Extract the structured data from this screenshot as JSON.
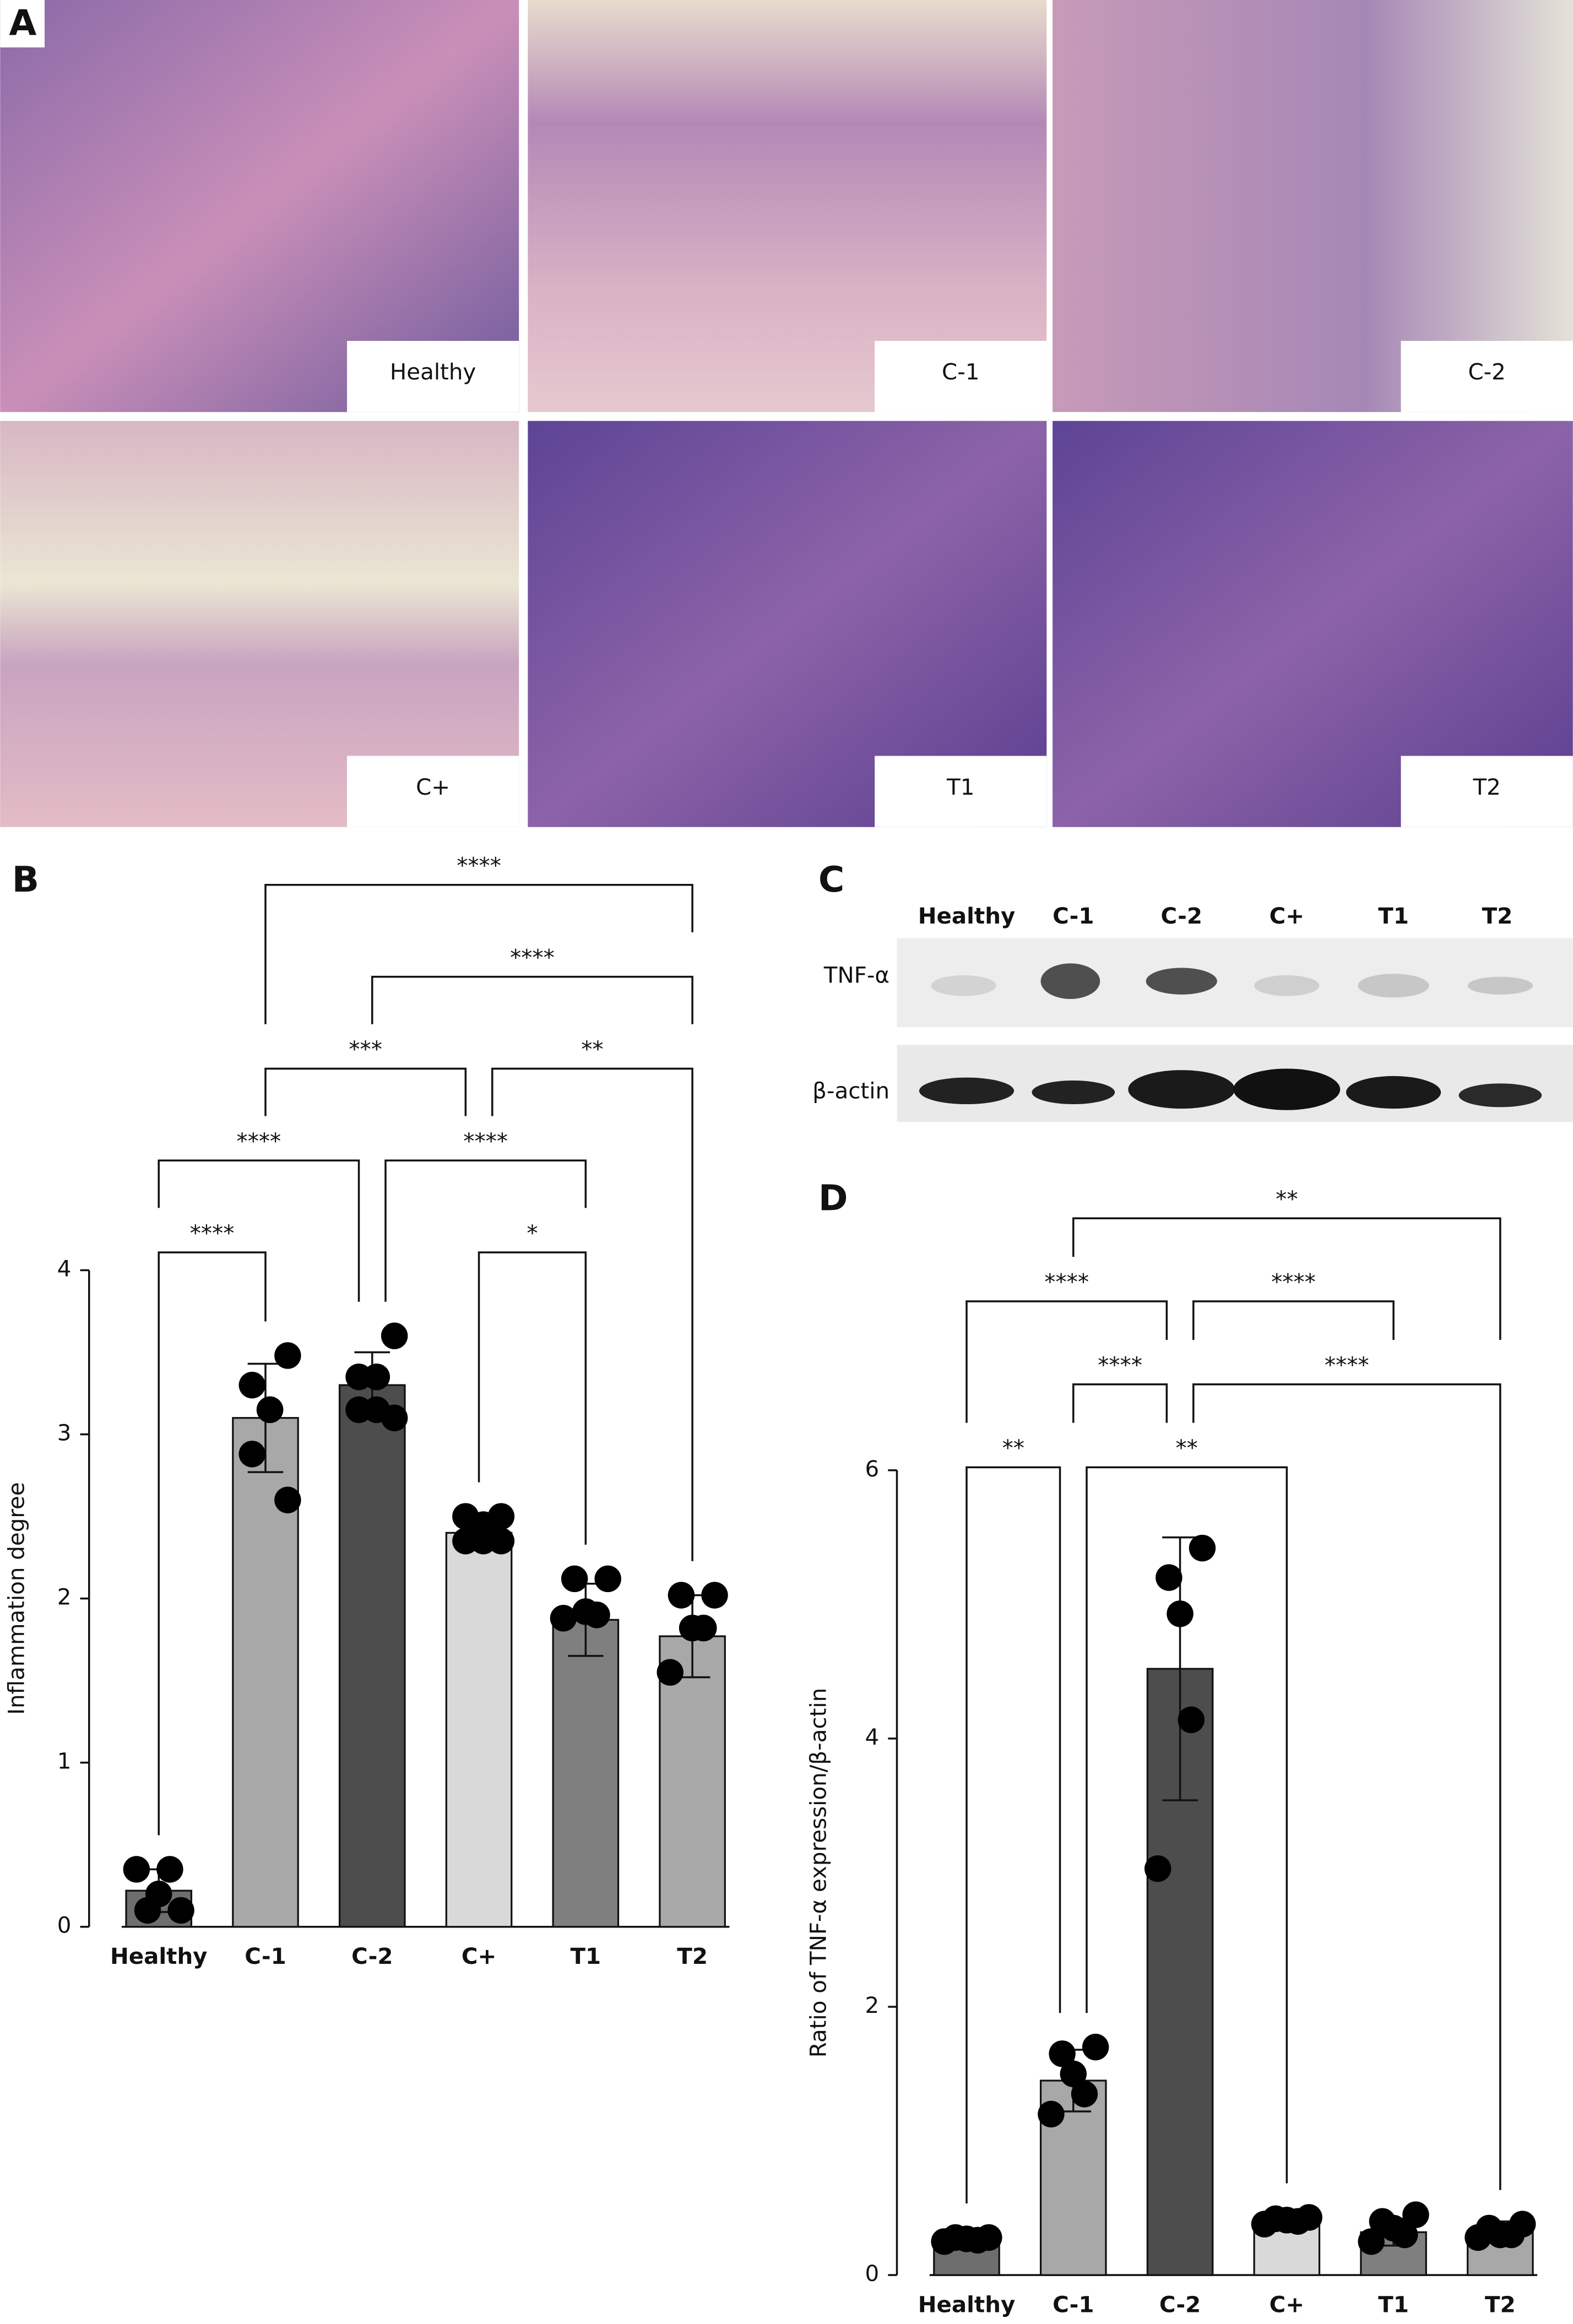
{
  "panel_a": {
    "label": "A",
    "images": [
      "Healthy",
      "C-1",
      "C-2",
      "C+",
      "T1",
      "T2"
    ]
  },
  "panel_c": {
    "label": "C",
    "lanes": [
      "Healthy",
      "C-1",
      "C-2",
      "C+",
      "T1",
      "T2"
    ],
    "rows": [
      "TNF-α",
      "β-actin"
    ]
  },
  "chart_data": [
    {
      "type": "bar",
      "label": "B",
      "y_label": "Inflammation degree",
      "categories": [
        "Healthy",
        "C-1",
        "C-2",
        "C+",
        "T1",
        "T2"
      ],
      "values": [
        0.22,
        3.1,
        3.3,
        2.4,
        1.87,
        1.77
      ],
      "errors": [
        0.13,
        0.33,
        0.2,
        0.1,
        0.22,
        0.25
      ],
      "colors": [
        "#6e6e6e",
        "#a8a8a8",
        "#4d4d4d",
        "#d9d9d9",
        "#7f7f7f",
        "#a8a8a8"
      ],
      "points": [
        [
          0.1,
          0.1,
          0.2,
          0.35,
          0.35
        ],
        [
          3.48,
          3.3,
          3.15,
          3.15,
          2.88,
          2.6
        ],
        [
          3.6,
          3.35,
          3.35,
          3.15,
          3.15,
          3.1
        ],
        [
          2.5,
          2.5,
          2.45,
          2.35,
          2.35,
          2.35
        ],
        [
          2.12,
          2.12,
          1.92,
          1.9,
          1.88
        ],
        [
          2.02,
          2.02,
          1.82,
          1.82,
          1.55
        ]
      ],
      "ylim": [
        0,
        4
      ],
      "yticks": [
        0,
        1,
        2,
        3,
        4
      ],
      "brackets": [
        {
          "from": 0,
          "to": 1,
          "label": "****"
        },
        {
          "from": 3,
          "to": 4,
          "label": "*"
        },
        {
          "from": 0,
          "to": 2,
          "label": "****"
        },
        {
          "from": 2,
          "to": 4,
          "label": "****"
        },
        {
          "from": 1,
          "to": 3,
          "label": "***"
        },
        {
          "from": 3,
          "to": 5,
          "label": "**"
        },
        {
          "from": 2,
          "to": 5,
          "label": "****"
        },
        {
          "from": 1,
          "to": 5,
          "label": "****"
        }
      ]
    },
    {
      "type": "bar",
      "label": "D",
      "y_label": "Ratio of TNF-α expression/β-actin",
      "categories": [
        "Healthy",
        "C-1",
        "C-2",
        "C+",
        "T1",
        "T2"
      ],
      "values": [
        0.27,
        1.45,
        4.52,
        0.4,
        0.32,
        0.32
      ],
      "errors": [
        0.05,
        0.23,
        0.98,
        0.04,
        0.1,
        0.08
      ],
      "colors": [
        "#6e6e6e",
        "#a8a8a8",
        "#4d4d4d",
        "#d9d9d9",
        "#7f7f7f",
        "#a8a8a8"
      ],
      "points": [
        [
          0.28,
          0.28,
          0.27,
          0.26,
          0.25
        ],
        [
          1.7,
          1.65,
          1.5,
          1.35,
          1.2
        ],
        [
          5.42,
          5.2,
          4.93,
          4.14,
          3.03
        ],
        [
          0.43,
          0.42,
          0.41,
          0.4,
          0.38
        ],
        [
          0.45,
          0.4,
          0.35,
          0.3,
          0.25
        ],
        [
          0.38,
          0.35,
          0.3,
          0.3,
          0.28
        ]
      ],
      "ylim": [
        0,
        6
      ],
      "yticks": [
        0,
        2,
        4,
        6
      ],
      "brackets": [
        {
          "from": 0,
          "to": 1,
          "label": "**"
        },
        {
          "from": 1,
          "to": 3,
          "label": "**"
        },
        {
          "from": 1,
          "to": 2,
          "label": "****"
        },
        {
          "from": 2,
          "to": 5,
          "label": "****"
        },
        {
          "from": 0,
          "to": 2,
          "label": "****"
        },
        {
          "from": 2,
          "to": 4,
          "label": "****"
        },
        {
          "from": 1,
          "to": 5,
          "label": "**"
        }
      ]
    }
  ]
}
